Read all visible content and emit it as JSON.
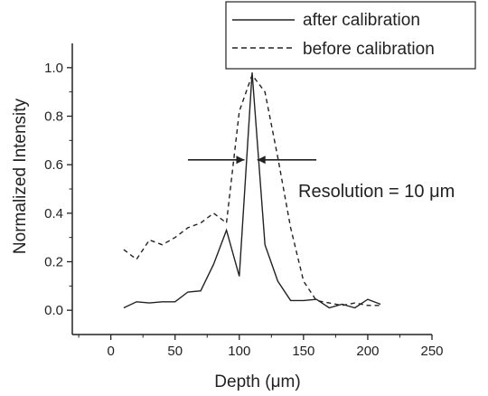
{
  "chart_data": {
    "type": "line",
    "xlabel": "Depth (μm)",
    "ylabel": "Normalized Intensity",
    "xlim": [
      -30,
      250
    ],
    "ylim": [
      -0.1,
      1.1
    ],
    "x_ticks": [
      0,
      50,
      100,
      150,
      200,
      250
    ],
    "y_ticks": [
      0.0,
      0.2,
      0.4,
      0.6,
      0.8,
      1.0
    ],
    "x_tick_labels": [
      "0",
      "50",
      "100",
      "150",
      "200",
      "250"
    ],
    "y_tick_labels": [
      "0.0",
      "0.2",
      "0.4",
      "0.6",
      "0.8",
      "1.0"
    ],
    "grid": false,
    "legend_position": "top-right",
    "series": [
      {
        "name": "after calibration",
        "style": "solid",
        "color": "#222222",
        "x": [
          10,
          20,
          30,
          40,
          50,
          60,
          70,
          80,
          90,
          100,
          110,
          120,
          130,
          140,
          150,
          160,
          170,
          180,
          190,
          200,
          210
        ],
        "y": [
          0.01,
          0.035,
          0.03,
          0.035,
          0.035,
          0.075,
          0.08,
          0.19,
          0.33,
          0.14,
          0.98,
          0.27,
          0.12,
          0.04,
          0.04,
          0.045,
          0.01,
          0.025,
          0.01,
          0.045,
          0.025
        ]
      },
      {
        "name": "before calibration",
        "style": "dashed",
        "color": "#222222",
        "x": [
          10,
          20,
          30,
          40,
          50,
          60,
          70,
          80,
          90,
          100,
          110,
          120,
          130,
          140,
          150,
          160,
          170,
          180,
          190,
          200,
          210
        ],
        "y": [
          0.25,
          0.21,
          0.29,
          0.27,
          0.3,
          0.34,
          0.36,
          0.4,
          0.36,
          0.82,
          0.97,
          0.9,
          0.63,
          0.34,
          0.12,
          0.04,
          0.03,
          0.02,
          0.03,
          0.02,
          0.02
        ]
      }
    ],
    "annotations": [
      {
        "text": "Resolution = 10 μm",
        "marker": "arrows-pointing-inward",
        "y": 0.62,
        "left_arrow_x": [
          60,
          104
        ],
        "right_arrow_x": [
          160,
          114
        ]
      }
    ]
  }
}
